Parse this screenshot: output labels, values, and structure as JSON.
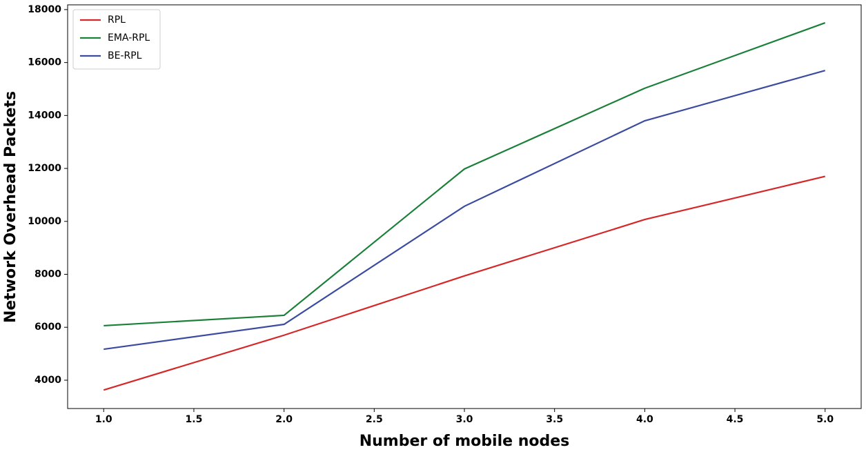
{
  "chart_data": {
    "type": "line",
    "x_label": "Number of mobile nodes",
    "y_label": "Network Overhead Packets",
    "x": [
      1,
      2,
      3,
      4,
      5
    ],
    "series": [
      {
        "name": "RPL",
        "color": "#d62728",
        "values": [
          3630,
          5700,
          7940,
          10070,
          11700
        ]
      },
      {
        "name": "EMA-RPL",
        "color": "#1a7f37",
        "values": [
          6060,
          6450,
          11980,
          15030,
          17500
        ]
      },
      {
        "name": "BE-RPL",
        "color": "#3a4ba0",
        "values": [
          5170,
          6110,
          10570,
          13800,
          15700
        ]
      }
    ],
    "xlim": [
      0.8,
      5.2
    ],
    "xticks": [
      {
        "value": 1,
        "label": "1.0"
      },
      1.5,
      {
        "value": 2,
        "label": "2.0"
      },
      2.5,
      {
        "value": 3,
        "label": "3.0"
      },
      3.5,
      {
        "value": 4,
        "label": "4.0"
      },
      4.5,
      {
        "value": 5,
        "label": "5.0"
      }
    ],
    "ylim": [
      2930,
      18180
    ],
    "yticks": [
      4000,
      6000,
      8000,
      10000,
      12000,
      14000,
      16000,
      18000
    ],
    "grid": false,
    "legend": "upper-left"
  }
}
